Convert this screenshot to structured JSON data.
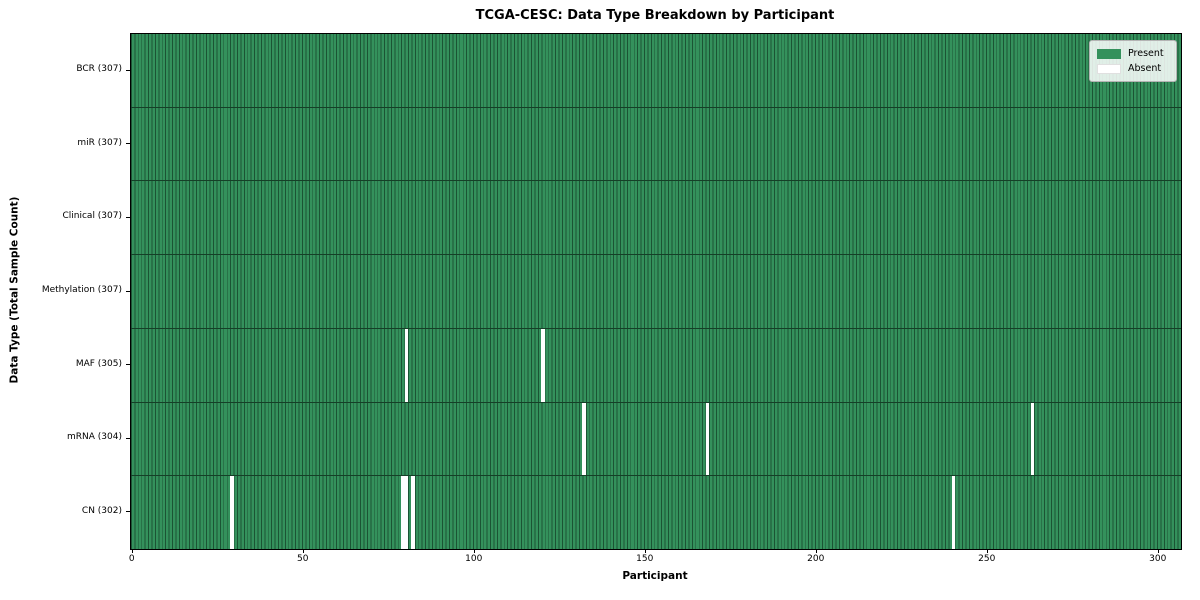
{
  "title": "TCGA-CESC: Data Type Breakdown by Participant",
  "xlabel": "Participant",
  "ylabel": "Data Type (Total Sample Count)",
  "legend": {
    "present_label": "Present",
    "absent_label": "Absent",
    "position": "upper right"
  },
  "colors": {
    "present_fill": "#34915c",
    "bar_edge": "#1b5434",
    "absent_fill": "#ffffff",
    "row_divider": "#153f27",
    "plot_border": "#000000",
    "legend_border": "#b4b4b4"
  },
  "x_ticks": [
    0,
    50,
    100,
    150,
    200,
    250,
    300
  ],
  "chart_data": {
    "type": "heatmap",
    "title": "TCGA-CESC: Data Type Breakdown by Participant",
    "xlabel": "Participant",
    "ylabel": "Data Type (Total Sample Count)",
    "n_participants": 307,
    "x_range": [
      0,
      306
    ],
    "x_tick_values": [
      0,
      50,
      100,
      150,
      200,
      250,
      300
    ],
    "grid": false,
    "legend_entries": [
      "Present",
      "Absent"
    ],
    "legend_position": "upper right",
    "cell_values": "1 = Present (green), 0 = Absent (white); all participants present except listed absences",
    "rows": [
      {
        "label": "BCR (307)",
        "data_type": "BCR",
        "present_count": 307,
        "absent_participants": []
      },
      {
        "label": "miR (307)",
        "data_type": "miR",
        "present_count": 307,
        "absent_participants": []
      },
      {
        "label": "Clinical (307)",
        "data_type": "Clinical",
        "present_count": 307,
        "absent_participants": []
      },
      {
        "label": "Methylation (307)",
        "data_type": "Methylation",
        "present_count": 307,
        "absent_participants": []
      },
      {
        "label": "MAF (305)",
        "data_type": "MAF",
        "present_count": 305,
        "absent_participants": [
          80,
          120
        ]
      },
      {
        "label": "mRNA (304)",
        "data_type": "mRNA",
        "present_count": 304,
        "absent_participants": [
          132,
          168,
          263
        ]
      },
      {
        "label": "CN (302)",
        "data_type": "CN",
        "present_count": 302,
        "absent_participants": [
          29,
          79,
          80,
          82,
          240
        ]
      }
    ]
  }
}
